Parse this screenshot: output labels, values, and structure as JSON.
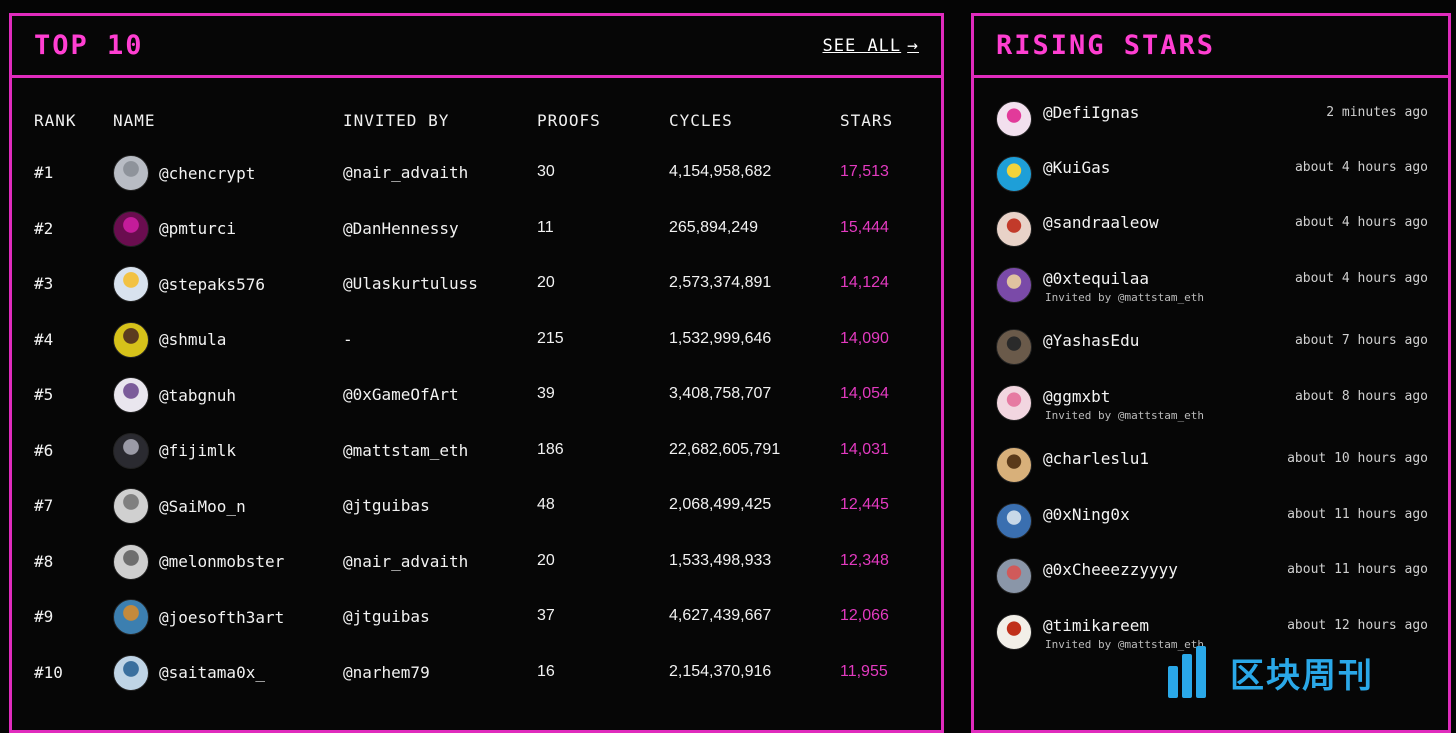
{
  "top10": {
    "title": "TOP 10",
    "see_all": "SEE ALL",
    "columns": {
      "rank": "RANK",
      "name": "NAME",
      "invited_by": "INVITED BY",
      "proofs": "PROOFS",
      "cycles": "CYCLES",
      "stars": "STARS"
    },
    "rows": [
      {
        "rank": "#1",
        "name": "@chencrypt",
        "invited_by": "@nair_advaith",
        "proofs": "30",
        "cycles": "4,154,958,682",
        "stars": "17,513"
      },
      {
        "rank": "#2",
        "name": "@pmturci",
        "invited_by": "@DanHennessy",
        "proofs": "11",
        "cycles": "265,894,249",
        "stars": "15,444"
      },
      {
        "rank": "#3",
        "name": "@stepaks576",
        "invited_by": "@Ulaskurtuluss",
        "proofs": "20",
        "cycles": "2,573,374,891",
        "stars": "14,124"
      },
      {
        "rank": "#4",
        "name": "@shmula",
        "invited_by": "-",
        "proofs": "215",
        "cycles": "1,532,999,646",
        "stars": "14,090"
      },
      {
        "rank": "#5",
        "name": "@tabgnuh",
        "invited_by": "@0xGameOfArt",
        "proofs": "39",
        "cycles": "3,408,758,707",
        "stars": "14,054"
      },
      {
        "rank": "#6",
        "name": "@fijimlk",
        "invited_by": "@mattstam_eth",
        "proofs": "186",
        "cycles": "22,682,605,791",
        "stars": "14,031"
      },
      {
        "rank": "#7",
        "name": "@SaiMoo_n",
        "invited_by": "@jtguibas",
        "proofs": "48",
        "cycles": "2,068,499,425",
        "stars": "12,445"
      },
      {
        "rank": "#8",
        "name": "@melonmobster",
        "invited_by": "@nair_advaith",
        "proofs": "20",
        "cycles": "1,533,498,933",
        "stars": "12,348"
      },
      {
        "rank": "#9",
        "name": "@joesofth3art",
        "invited_by": "@jtguibas",
        "proofs": "37",
        "cycles": "4,627,439,667",
        "stars": "12,066"
      },
      {
        "rank": "#10",
        "name": "@saitama0x_",
        "invited_by": "@narhem79",
        "proofs": "16",
        "cycles": "2,154,370,916",
        "stars": "11,955"
      }
    ]
  },
  "rising": {
    "title": "RISING STARS",
    "items": [
      {
        "handle": "@DefiIgnas",
        "time": "2 minutes ago",
        "invited": ""
      },
      {
        "handle": "@KuiGas",
        "time": "about 4 hours ago",
        "invited": ""
      },
      {
        "handle": "@sandraaleow",
        "time": "about 4 hours ago",
        "invited": ""
      },
      {
        "handle": "@0xtequilaa",
        "time": "about 4 hours ago",
        "invited": "Invited by @mattstam_eth"
      },
      {
        "handle": "@YashasEdu",
        "time": "about 7 hours ago",
        "invited": ""
      },
      {
        "handle": "@ggmxbt",
        "time": "about 8 hours ago",
        "invited": "Invited by @mattstam_eth"
      },
      {
        "handle": "@charleslu1",
        "time": "about 10 hours ago",
        "invited": ""
      },
      {
        "handle": "@0xNing0x",
        "time": "about 11 hours ago",
        "invited": ""
      },
      {
        "handle": "@0xCheeezzyyyy",
        "time": "about 11 hours ago",
        "invited": ""
      },
      {
        "handle": "@timikareem",
        "time": "about 12 hours ago",
        "invited": "Invited by @mattstam_eth"
      }
    ]
  },
  "watermark": {
    "text": "区块周刊"
  },
  "colors": {
    "accent": "#e02bbd",
    "title": "#ff3fd2",
    "stars": "#e33ac0",
    "watermark": "#2aa8e8"
  }
}
